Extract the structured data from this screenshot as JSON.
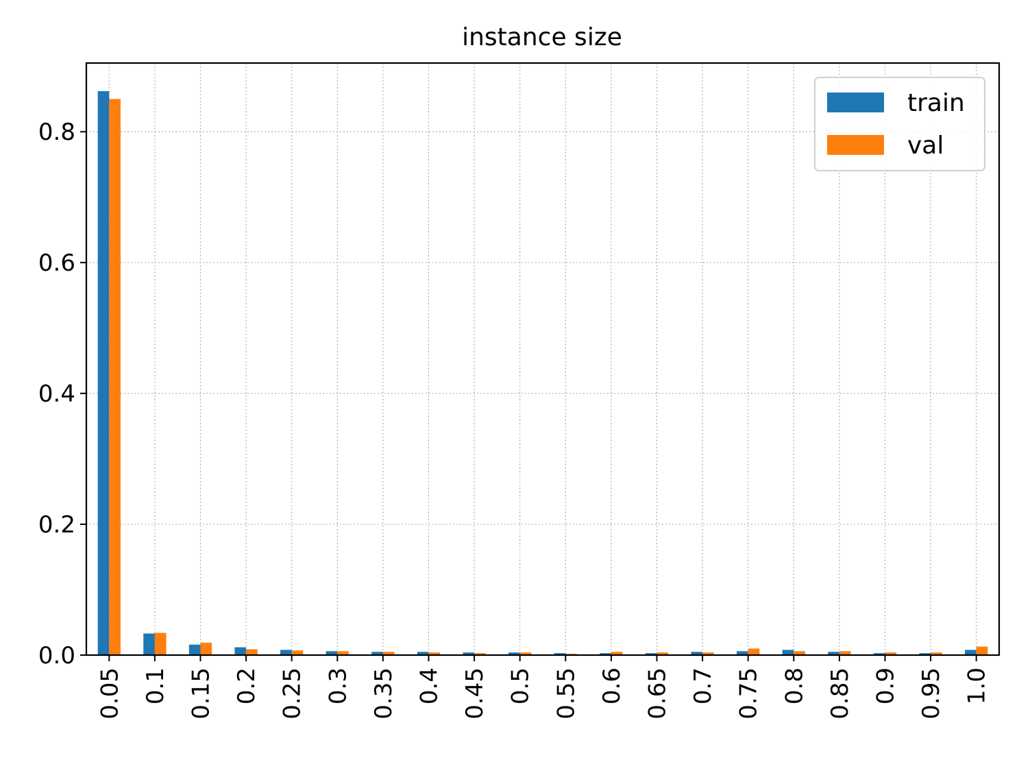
{
  "chart_data": {
    "type": "bar",
    "title": "instance size",
    "xlabel": "",
    "ylabel": "",
    "categories": [
      "0.05",
      "0.1",
      "0.15",
      "0.2",
      "0.25",
      "0.3",
      "0.35",
      "0.4",
      "0.45",
      "0.5",
      "0.55",
      "0.6",
      "0.65",
      "0.7",
      "0.75",
      "0.8",
      "0.85",
      "0.9",
      "0.95",
      "1.0"
    ],
    "series": [
      {
        "name": "train",
        "color": "#1f77b4",
        "values": [
          0.862,
          0.033,
          0.016,
          0.012,
          0.008,
          0.006,
          0.005,
          0.005,
          0.004,
          0.004,
          0.003,
          0.003,
          0.003,
          0.005,
          0.006,
          0.008,
          0.005,
          0.003,
          0.003,
          0.008
        ]
      },
      {
        "name": "val",
        "color": "#ff7f0e",
        "values": [
          0.85,
          0.034,
          0.019,
          0.009,
          0.007,
          0.006,
          0.005,
          0.004,
          0.003,
          0.004,
          0.002,
          0.005,
          0.004,
          0.004,
          0.01,
          0.006,
          0.006,
          0.004,
          0.004,
          0.013
        ]
      }
    ],
    "yticks": [
      "0.0",
      "0.2",
      "0.4",
      "0.6",
      "0.8"
    ],
    "ylim": [
      0,
      0.905
    ],
    "grid": true,
    "legend_position": "top-right",
    "xtick_rotation": "vertical"
  }
}
